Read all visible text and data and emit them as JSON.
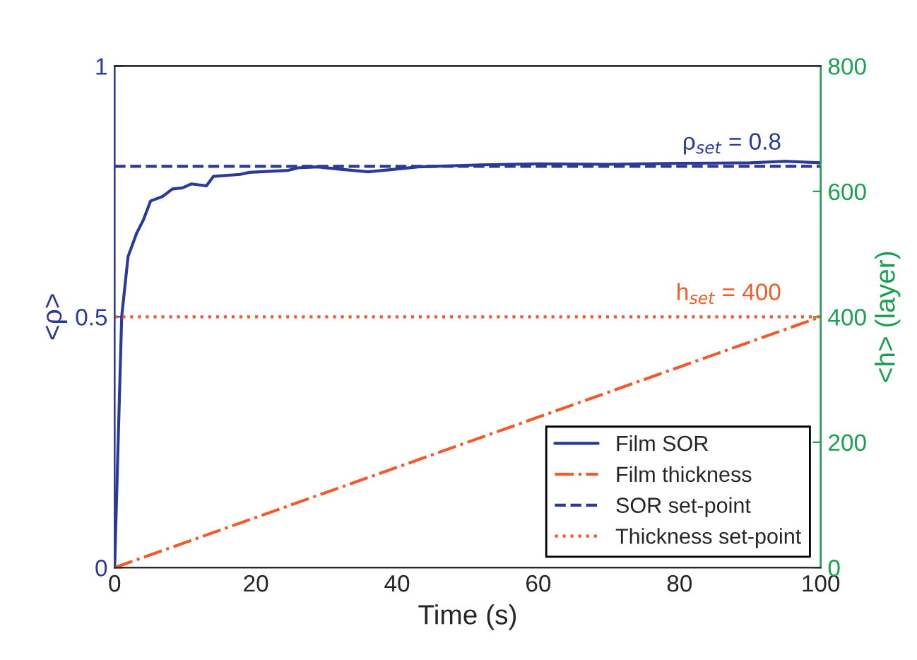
{
  "chart_data": {
    "type": "line",
    "xlabel": "Time (s)",
    "ylabel": "<ρ>",
    "y2label": "<h> (layer)",
    "xlim": [
      0,
      100
    ],
    "xticks": [
      0,
      20,
      40,
      60,
      80,
      100
    ],
    "ylim": [
      0,
      1
    ],
    "yticks": [
      0,
      0.5,
      1
    ],
    "y2lim": [
      0,
      800
    ],
    "y2ticks": [
      0,
      200,
      400,
      600,
      800
    ],
    "grid": false,
    "legend": "bottom right",
    "series": [
      {
        "name": "Film SOR",
        "color": "#2b3a97",
        "line_style": "solid",
        "x": [
          0,
          1.0,
          1.9,
          3.1,
          4.1,
          5.1,
          6.8,
          8.2,
          9.6,
          10.9,
          13.0,
          14.0,
          17.8,
          19.1,
          24.6,
          26.0,
          28.7,
          32.1,
          35.9,
          39.6,
          43.0,
          51.9,
          60,
          70,
          80,
          90,
          95,
          100
        ],
        "values": [
          0,
          0.5,
          0.62,
          0.666,
          0.694,
          0.731,
          0.74,
          0.755,
          0.757,
          0.765,
          0.761,
          0.78,
          0.784,
          0.788,
          0.792,
          0.797,
          0.799,
          0.794,
          0.789,
          0.794,
          0.799,
          0.803,
          0.805,
          0.804,
          0.806,
          0.807,
          0.81,
          0.807
        ]
      },
      {
        "name": "Film thickness",
        "color": "#f25a2b",
        "line_style": "dashdot",
        "axis": "y2",
        "x": [
          0,
          100
        ],
        "values": [
          0,
          400
        ]
      },
      {
        "name": "SOR set-point",
        "color": "#2b3a97",
        "line_style": "dashed",
        "x": [
          0,
          100
        ],
        "values": [
          0.8,
          0.8
        ]
      },
      {
        "name": "Thickness set-point",
        "color": "#f25a2b",
        "line_style": "dotted",
        "axis": "y2",
        "x": [
          0,
          100
        ],
        "values": [
          400,
          400
        ]
      }
    ],
    "annotations": [
      "ρ$_{set}$ = 0.8",
      "h$_{set}$ = 400"
    ]
  }
}
